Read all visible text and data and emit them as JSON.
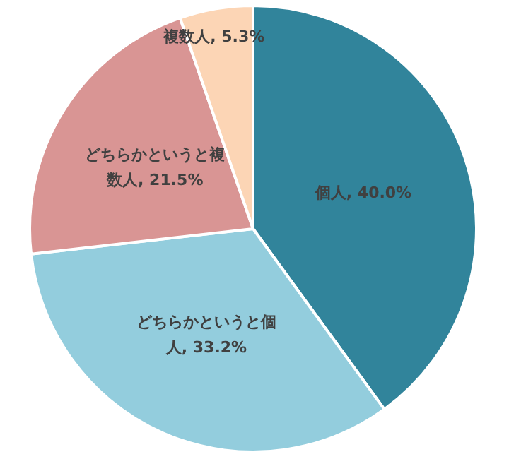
{
  "chart_data": {
    "type": "pie",
    "categories": [
      "個人",
      "どちらかというと個人",
      "どちらかというと複数人",
      "複数人"
    ],
    "values": [
      40.0,
      33.2,
      21.5,
      5.3
    ],
    "colors": [
      "#31849b",
      "#93cddd",
      "#d99594",
      "#fcd5b5"
    ],
    "value_labels": [
      "40.0%",
      "33.2%",
      "21.5%",
      "5.3%"
    ]
  }
}
